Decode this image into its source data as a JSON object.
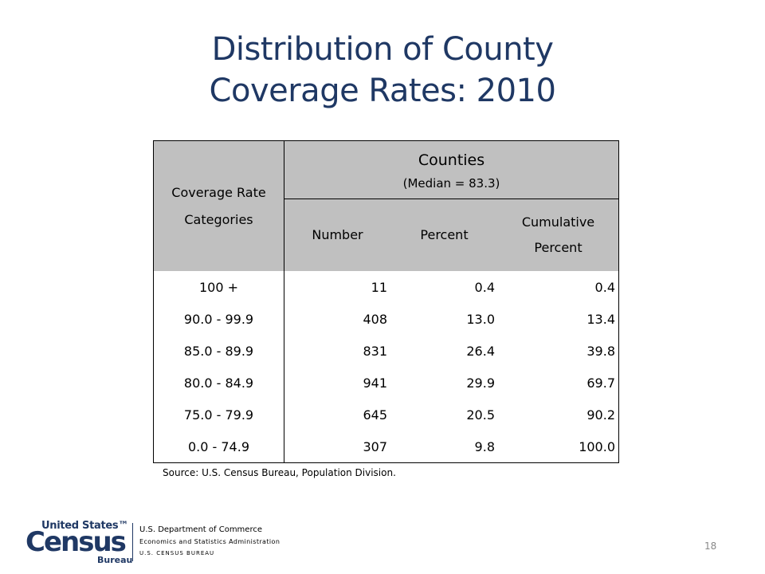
{
  "title": {
    "line1": "Distribution of County",
    "line2": "Coverage Rates:  2010"
  },
  "table": {
    "header": {
      "category_line1": "Coverage Rate",
      "category_line2": "Categories",
      "group": "Counties",
      "median": "(Median = 83.3)",
      "number": "Number",
      "percent": "Percent",
      "cumulative_line1": "Cumulative",
      "cumulative_line2": "Percent"
    },
    "rows": [
      {
        "category": "100 +",
        "number": "11",
        "percent": "0.4",
        "cumulative": "0.4"
      },
      {
        "category": "90.0 - 99.9",
        "number": "408",
        "percent": "13.0",
        "cumulative": "13.4"
      },
      {
        "category": "85.0 - 89.9",
        "number": "831",
        "percent": "26.4",
        "cumulative": "39.8"
      },
      {
        "category": "80.0 - 84.9",
        "number": "941",
        "percent": "29.9",
        "cumulative": "69.7"
      },
      {
        "category": "75.0 - 79.9",
        "number": "645",
        "percent": "20.5",
        "cumulative": "90.2"
      },
      {
        "category": "0.0 - 74.9",
        "number": "307",
        "percent": "9.8",
        "cumulative": "100.0"
      }
    ]
  },
  "source": "Source: U.S. Census Bureau, Population Division.",
  "footer": {
    "logo_line1": "United States™",
    "logo_line2": "Census",
    "logo_line3": "Bureau",
    "dept": "U.S. Department of Commerce",
    "admin": "Economics  and Statistics Administration",
    "bureau": "U.S. CENSUS BUREAU",
    "page_number": "18"
  },
  "colors": {
    "title": "#1f3864",
    "header_bg": "#c0c0c0"
  }
}
